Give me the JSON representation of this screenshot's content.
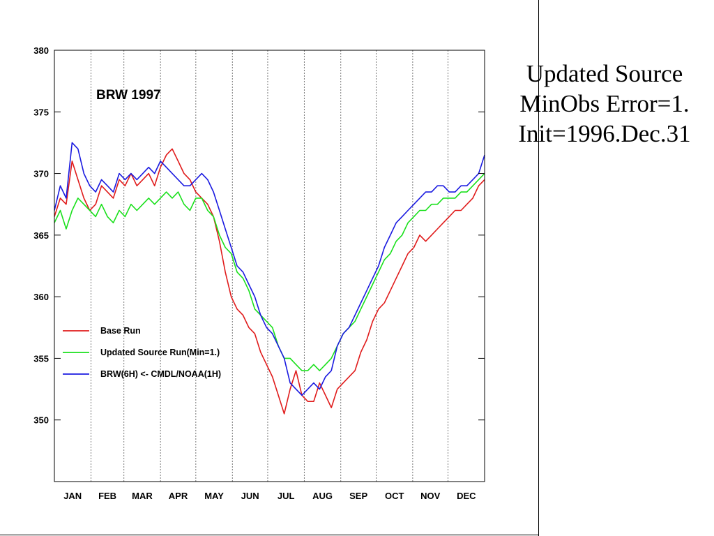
{
  "side_text": {
    "line1": "Updated Source",
    "line2": "MinObs Error=1.",
    "line3": "Init=1996.Dec.31"
  },
  "chart_data": {
    "type": "line",
    "title": "BRW 1997",
    "xlabel": "",
    "ylabel": "",
    "xlim": [
      0,
      365
    ],
    "ylim": [
      345,
      380
    ],
    "y_ticks": [
      350,
      355,
      360,
      365,
      370,
      375,
      380
    ],
    "month_labels": [
      "JAN",
      "FEB",
      "MAR",
      "APR",
      "MAY",
      "JUN",
      "JUL",
      "AUG",
      "SEP",
      "OCT",
      "NOV",
      "DEC"
    ],
    "month_starts": [
      0,
      31,
      59,
      90,
      120,
      151,
      181,
      212,
      243,
      273,
      304,
      334
    ],
    "grid": "vertical dashed at month boundaries",
    "legend_placement": "lower-left",
    "x_units": "day of year 1997",
    "series": [
      {
        "name": "Base Run",
        "color": "#e01b1b",
        "x": [
          0,
          5,
          10,
          15,
          20,
          25,
          30,
          35,
          40,
          45,
          50,
          55,
          60,
          65,
          70,
          75,
          80,
          85,
          90,
          95,
          100,
          105,
          110,
          115,
          120,
          125,
          130,
          135,
          140,
          145,
          150,
          155,
          160,
          165,
          170,
          175,
          180,
          185,
          190,
          195,
          200,
          205,
          210,
          215,
          220,
          225,
          230,
          235,
          240,
          245,
          250,
          255,
          260,
          265,
          270,
          275,
          280,
          285,
          290,
          295,
          300,
          305,
          310,
          315,
          320,
          325,
          330,
          335,
          340,
          345,
          350,
          355,
          360,
          365
        ],
        "y": [
          366.5,
          368,
          367.5,
          371,
          369.5,
          368,
          367,
          367.5,
          369,
          368.5,
          368,
          369.5,
          369,
          370,
          369,
          369.5,
          370,
          369,
          370.5,
          371.5,
          372,
          371,
          370,
          369.5,
          368.5,
          368,
          367.5,
          366.5,
          364.5,
          362,
          360,
          359,
          358.5,
          357.5,
          357,
          355.5,
          354.5,
          353.5,
          352,
          350.5,
          352.5,
          354,
          352,
          351.5,
          351.5,
          353,
          352,
          351,
          352.5,
          353,
          353.5,
          354,
          355.5,
          356.5,
          358,
          359,
          359.5,
          360.5,
          361.5,
          362.5,
          363.5,
          364,
          365,
          364.5,
          365,
          365.5,
          366,
          366.5,
          367,
          367,
          367.5,
          368,
          369,
          369.5
        ]
      },
      {
        "name": "Updated Source Run(Min=1.)",
        "color": "#19e01b",
        "x": [
          0,
          5,
          10,
          15,
          20,
          25,
          30,
          35,
          40,
          45,
          50,
          55,
          60,
          65,
          70,
          75,
          80,
          85,
          90,
          95,
          100,
          105,
          110,
          115,
          120,
          125,
          130,
          135,
          140,
          145,
          150,
          155,
          160,
          165,
          170,
          175,
          180,
          185,
          190,
          195,
          200,
          205,
          210,
          215,
          220,
          225,
          230,
          235,
          240,
          245,
          250,
          255,
          260,
          265,
          270,
          275,
          280,
          285,
          290,
          295,
          300,
          305,
          310,
          315,
          320,
          325,
          330,
          335,
          340,
          345,
          350,
          355,
          360,
          365
        ],
        "y": [
          366,
          367,
          365.5,
          367,
          368,
          367.5,
          367,
          366.5,
          367.5,
          366.5,
          366,
          367,
          366.5,
          367.5,
          367,
          367.5,
          368,
          367.5,
          368,
          368.5,
          368,
          368.5,
          367.5,
          367,
          368,
          368,
          367,
          366.5,
          365,
          364,
          363.5,
          362,
          361.5,
          360.5,
          359,
          358.5,
          358,
          357.5,
          356,
          355,
          355,
          354.5,
          354,
          354,
          354.5,
          354,
          354.5,
          355,
          356,
          357,
          357.5,
          358,
          359,
          360,
          361,
          362,
          363,
          363.5,
          364.5,
          365,
          366,
          366.5,
          367,
          367,
          367.5,
          367.5,
          368,
          368,
          368,
          368.5,
          368.5,
          369,
          369.5,
          370
        ]
      },
      {
        "name": "BRW(6H) <- CMDL/NOAA(1H)",
        "color": "#1a1ae0",
        "x": [
          0,
          5,
          10,
          15,
          20,
          25,
          30,
          35,
          40,
          45,
          50,
          55,
          60,
          65,
          70,
          75,
          80,
          85,
          90,
          95,
          100,
          105,
          110,
          115,
          120,
          125,
          130,
          135,
          140,
          145,
          150,
          155,
          160,
          165,
          170,
          175,
          180,
          185,
          190,
          195,
          200,
          205,
          210,
          215,
          220,
          225,
          230,
          235,
          240,
          245,
          250,
          255,
          260,
          265,
          270,
          275,
          280,
          285,
          290,
          295,
          300,
          305,
          310,
          315,
          320,
          325,
          330,
          335,
          340,
          345,
          350,
          355,
          360,
          365
        ],
        "y": [
          367,
          369,
          368,
          372.5,
          372,
          370,
          369,
          368.5,
          369.5,
          369,
          368.5,
          370,
          369.5,
          370,
          369.5,
          370,
          370.5,
          370,
          371,
          370.5,
          370,
          369.5,
          369,
          369,
          369.5,
          370,
          369.5,
          368.5,
          367,
          365.5,
          364,
          362.5,
          362,
          361,
          360,
          358.5,
          357.5,
          357,
          356,
          355,
          353,
          352.5,
          352,
          352.5,
          353,
          352.5,
          353.5,
          354,
          356,
          357,
          357.5,
          358.5,
          359.5,
          360.5,
          361.5,
          362.5,
          364,
          365,
          366,
          366.5,
          367,
          367.5,
          368,
          368.5,
          368.5,
          369,
          369,
          368.5,
          368.5,
          369,
          369,
          369.5,
          370,
          371.5
        ]
      }
    ]
  }
}
